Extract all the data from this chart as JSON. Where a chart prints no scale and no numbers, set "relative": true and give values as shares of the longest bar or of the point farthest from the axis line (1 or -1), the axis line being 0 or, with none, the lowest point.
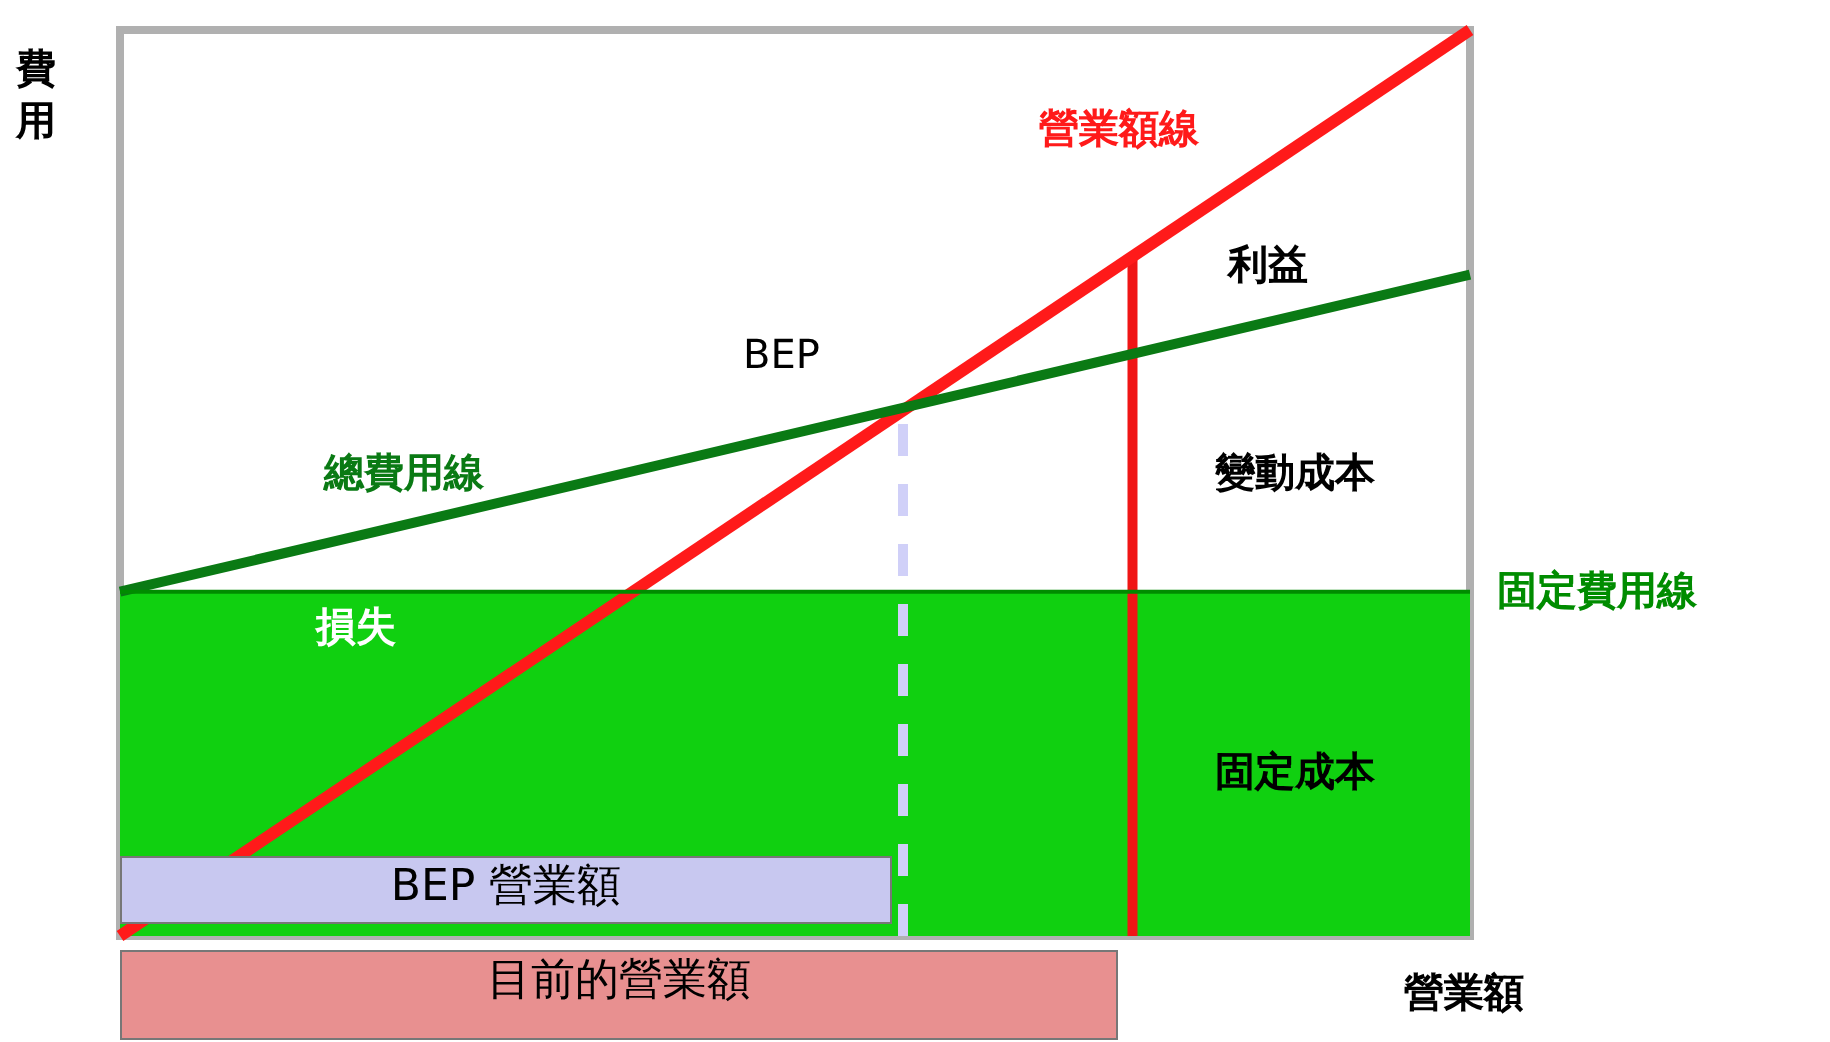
{
  "chart_data": {
    "type": "line",
    "relative": true,
    "categories": [
      null,
      null
    ],
    "tick_labels": false,
    "legend": false,
    "xlabel": "營業額",
    "ylabel": "費用",
    "series": [
      {
        "name": "營業額線",
        "color": "#ff1a1a",
        "values": [
          0,
          1
        ]
      },
      {
        "name": "總費用線",
        "color": "#0a7a14",
        "values": [
          0.38,
          0.73
        ]
      },
      {
        "name": "固定費用線",
        "color": "#008c00",
        "values": [
          0.38,
          0.38
        ]
      }
    ],
    "bands": [
      {
        "axis": "y",
        "from": 0,
        "to": 0.38,
        "label": "固定成本",
        "color": "#10d010"
      }
    ],
    "annotations": [
      "BEP",
      "利益",
      "變動成本",
      "損失",
      "BEP 營業額",
      "目前的營業額"
    ]
  }
}
